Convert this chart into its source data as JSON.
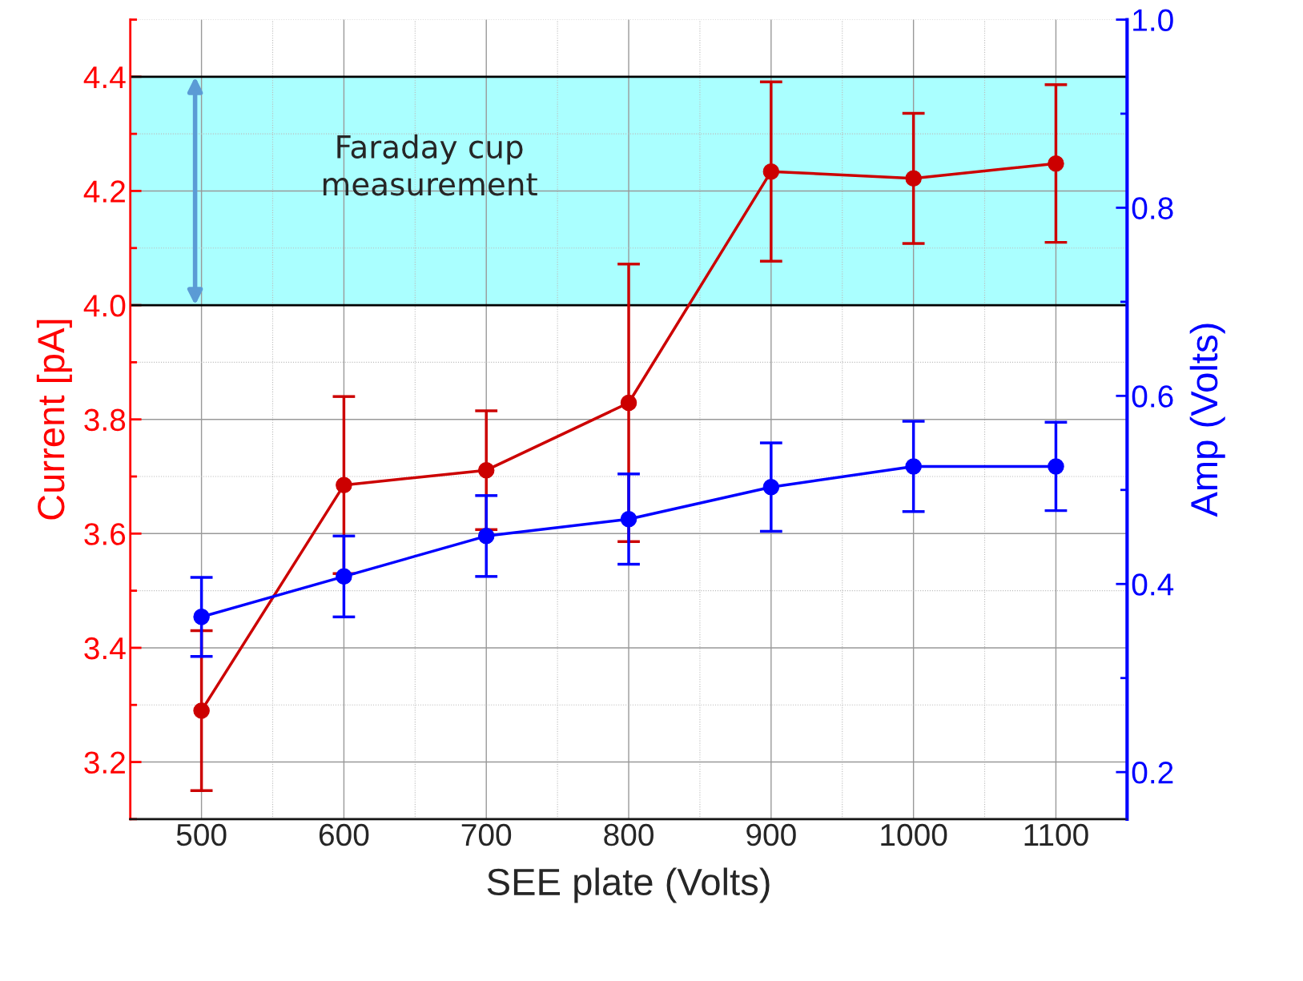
{
  "chart_data": {
    "type": "line",
    "xlabel": "SEE plate (Volts)",
    "ylabel": "Current [pA]",
    "y2label": "Amp (Volts)",
    "x": [
      500,
      600,
      700,
      800,
      900,
      1000,
      1100
    ],
    "xlim": [
      450,
      1150
    ],
    "xticks": [
      500,
      600,
      700,
      800,
      900,
      1000,
      1100
    ],
    "ylim": [
      3.1,
      4.5
    ],
    "yticks": [
      3.2,
      3.4,
      3.6,
      3.8,
      {
        "value": 4.0,
        "label": "4.0"
      },
      4.2,
      4.4
    ],
    "y2lim": [
      0.15,
      1.0
    ],
    "y2ticks": [
      0.2,
      0.4,
      0.6,
      0.8,
      {
        "value": 1.0,
        "label": "1.0"
      }
    ],
    "grid": true,
    "marker": "circle",
    "line_style": "solid",
    "series": [
      {
        "color": "#cc0000",
        "axis": "y",
        "values": [
          3.29,
          3.685,
          3.711,
          3.829,
          4.234,
          4.222,
          4.248
        ],
        "errors": [
          0.14,
          0.155,
          0.104,
          0.243,
          0.157,
          0.114,
          0.138
        ]
      },
      {
        "color": "#0000ff",
        "axis": "y2",
        "values": [
          0.365,
          0.408,
          0.451,
          0.469,
          0.503,
          0.525,
          0.525
        ],
        "errors": [
          0.042,
          0.043,
          0.043,
          0.048,
          0.047,
          0.048,
          0.047
        ]
      }
    ],
    "bands": [
      {
        "axis": "y",
        "from": 4.0,
        "to": 4.4,
        "color": "#aaffff",
        "label": "Faraday cup\nmeasurement"
      }
    ]
  }
}
